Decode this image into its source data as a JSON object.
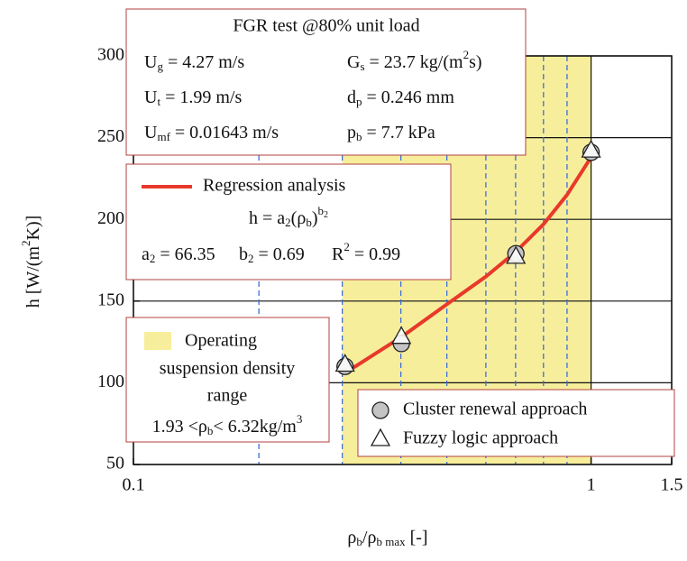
{
  "chart_data": {
    "type": "scatter",
    "xscale": "log",
    "xlim": [
      0.1,
      1.5
    ],
    "xticks": [
      0.1,
      1,
      1.5
    ],
    "ylim": [
      50,
      300
    ],
    "yticks": [
      50,
      100,
      150,
      200,
      250,
      300
    ],
    "grid": true,
    "xlabel": [
      {
        "t": "ρ"
      },
      {
        "sub": "b"
      },
      {
        "t": "/ρ"
      },
      {
        "sub": "b max"
      },
      {
        "t": " [-]"
      }
    ],
    "ylabel": [
      {
        "t": "h [W/(m"
      },
      {
        "sup": "2"
      },
      {
        "t": "K)]"
      }
    ],
    "shaded_region": {
      "x": [
        0.286,
        1
      ],
      "color": "#f7ee9c",
      "label": [
        "Operating",
        "suspension density",
        "range"
      ]
    },
    "reference_lines": {
      "x": [
        0.188,
        0.286,
        0.384,
        0.484,
        0.589,
        0.684,
        0.787,
        0.886
      ],
      "color": "#3c6fd6"
    },
    "series": [
      {
        "name": "Regression analysis",
        "marker": "line",
        "color": "#e8392a",
        "x": [
          0.29,
          0.385,
          0.484,
          0.589,
          0.684,
          0.787,
          0.886,
          1
        ],
        "values": [
          106,
          128,
          148,
          165,
          180,
          197,
          215,
          238
        ]
      },
      {
        "name": "Cluster renewal approach",
        "marker": "circle",
        "color": "#c4c4c4",
        "x": [
          0.29,
          0.385,
          0.685,
          1
        ],
        "values": [
          110,
          124,
          179,
          241
        ]
      },
      {
        "name": "Fuzzy logic approach",
        "marker": "triangle",
        "color": "#ffffff",
        "x": [
          0.29,
          0.385,
          0.685,
          1
        ],
        "values": [
          111,
          128,
          177,
          242
        ]
      }
    ],
    "info_box": {
      "title": "FGR test @80% unit load",
      "rows": [
        [
          [
            {
              "t": "U"
            },
            {
              "sub": "g"
            },
            {
              "t": " = 4.27 m/s"
            }
          ],
          [
            {
              "t": "G"
            },
            {
              "sub": "s"
            },
            {
              "t": " = 23.7 kg/(m"
            },
            {
              "sup": "2"
            },
            {
              "t": "s)"
            }
          ]
        ],
        [
          [
            {
              "t": "U"
            },
            {
              "sub": "t"
            },
            {
              "t": " = 1.99 m/s"
            }
          ],
          [
            {
              "t": "d"
            },
            {
              "sub": "p"
            },
            {
              "t": " = 0.246 mm"
            }
          ]
        ],
        [
          [
            {
              "t": "U"
            },
            {
              "sub": "mf"
            },
            {
              "t": " = 0.01643 m/s"
            }
          ],
          [
            {
              "t": "p"
            },
            {
              "sub": "b"
            },
            {
              "t": " = 7.7 kPa"
            }
          ]
        ]
      ]
    },
    "regression_box": {
      "equation": [
        {
          "t": "h = a"
        },
        {
          "sub": "2"
        },
        {
          "t": "(ρ"
        },
        {
          "sub": "b"
        },
        {
          "t": ")"
        },
        {
          "sup": "b"
        },
        {
          "supsub": "2"
        }
      ],
      "params": [
        [
          {
            "t": "a"
          },
          {
            "sub": "2"
          },
          {
            "t": " = 66.35"
          }
        ],
        [
          {
            "t": "b"
          },
          {
            "sub": "2"
          },
          {
            "t": " = 0.69"
          }
        ],
        [
          {
            "t": "R"
          },
          {
            "sup": "2"
          },
          {
            "t": " = 0.99"
          }
        ]
      ]
    },
    "range_text": [
      {
        "t": "1.93 <ρ"
      },
      {
        "sub": "b"
      },
      {
        "t": "< 6.32kg/m"
      },
      {
        "sup": "3"
      }
    ]
  }
}
